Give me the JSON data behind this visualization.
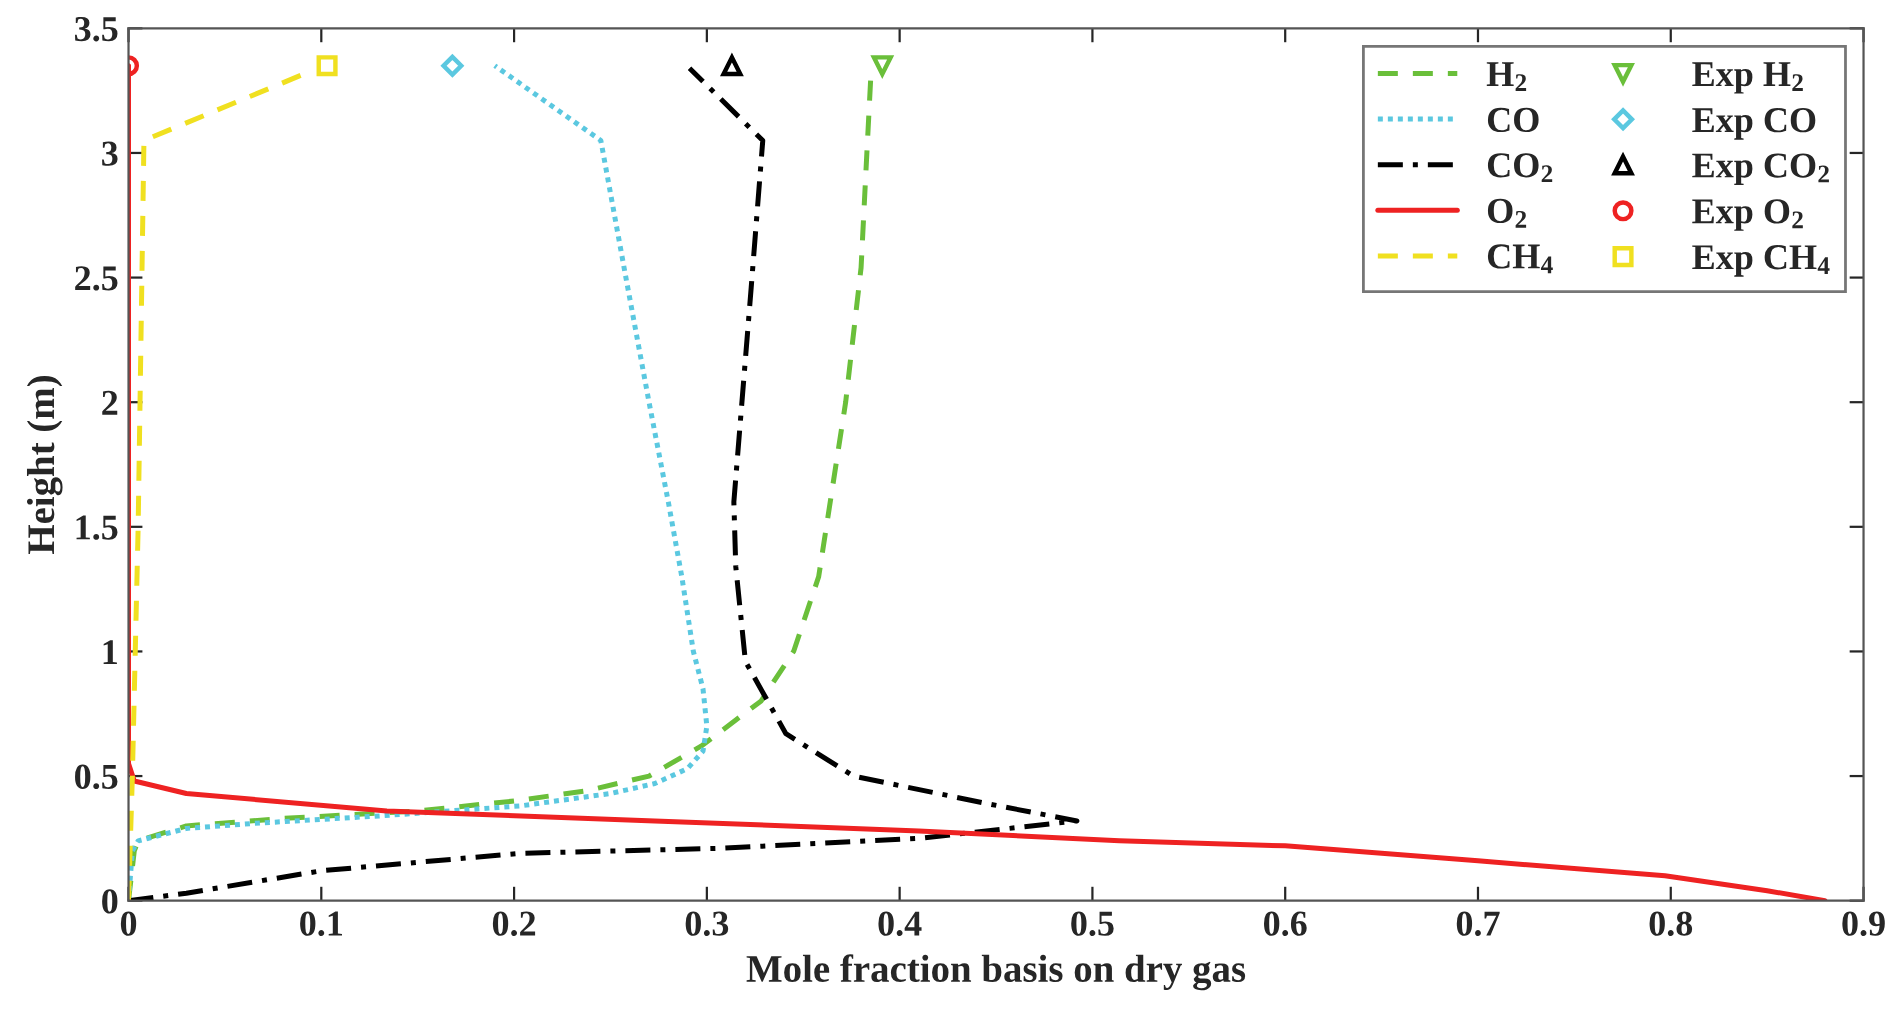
{
  "chart_data": {
    "type": "line",
    "xlabel": "Mole fraction basis on dry gas",
    "ylabel": "Height (m)",
    "xlim": [
      0,
      0.9
    ],
    "ylim": [
      0,
      3.5
    ],
    "xticks": [
      0,
      0.1,
      0.2,
      0.3,
      0.4,
      0.5,
      0.6,
      0.7,
      0.8,
      0.9
    ],
    "yticks": [
      0,
      0.5,
      1,
      1.5,
      2,
      2.5,
      3,
      3.5
    ],
    "grid": false,
    "legend": "top right",
    "series": [
      {
        "name": "H$_{2}$",
        "color": "#6abf3a",
        "line_style": "dashed",
        "x": [
          0,
          0.003,
          0.005,
          0.03,
          0.08,
          0.15,
          0.2,
          0.237,
          0.27,
          0.297,
          0.328,
          0.345,
          0.358,
          0.364,
          0.372,
          0.38,
          0.383,
          0.385
        ],
        "values": [
          0,
          0.2,
          0.24,
          0.3,
          0.33,
          0.36,
          0.4,
          0.44,
          0.5,
          0.62,
          0.8,
          1.0,
          1.3,
          1.6,
          2.0,
          2.54,
          3.0,
          3.3
        ]
      },
      {
        "name": "CO",
        "color": "#5bc8e0",
        "line_style": "dotted",
        "x": [
          0,
          0.002,
          0.005,
          0.03,
          0.065,
          0.13,
          0.203,
          0.25,
          0.273,
          0.29,
          0.298,
          0.3,
          0.298,
          0.293,
          0.287,
          0.28,
          0.27,
          0.258,
          0.245,
          0.19
        ],
        "values": [
          0,
          0.2,
          0.24,
          0.29,
          0.31,
          0.34,
          0.38,
          0.43,
          0.47,
          0.53,
          0.6,
          0.7,
          0.85,
          1.0,
          1.3,
          1.6,
          2.0,
          2.5,
          3.05,
          3.35
        ]
      },
      {
        "name": "CO$_{2}$",
        "color": "#000000",
        "line_style": "dashdot",
        "x": [
          0,
          0.03,
          0.1,
          0.203,
          0.307,
          0.41,
          0.492,
          0.445,
          0.376,
          0.341,
          0.32,
          0.315,
          0.314,
          0.323,
          0.329,
          0.291
        ],
        "values": [
          0,
          0.03,
          0.12,
          0.19,
          0.21,
          0.25,
          0.32,
          0.39,
          0.5,
          0.67,
          0.96,
          1.34,
          1.6,
          2.46,
          3.05,
          3.34
        ]
      },
      {
        "name": "O$_{2}$",
        "color": "#ee2222",
        "line_style": "solid",
        "x": [
          0,
          0,
          0.003,
          0.03,
          0.134,
          0.273,
          0.41,
          0.514,
          0.6,
          0.7,
          0.797,
          0.85,
          0.88
        ],
        "values": [
          3.35,
          0.55,
          0.48,
          0.43,
          0.36,
          0.32,
          0.28,
          0.24,
          0.22,
          0.16,
          0.1,
          0.04,
          0
        ]
      },
      {
        "name": "CH$_{4}$",
        "color": "#f0e020",
        "line_style": "dashed",
        "x": [
          0,
          0.002,
          0.005,
          0.008,
          0.092
        ],
        "values": [
          0,
          0.5,
          1.5,
          3.05,
          3.32
        ]
      },
      {
        "type": "scatter",
        "name": "Exp H$_{2}$",
        "color": "#6abf3a",
        "marker": "triangle_down",
        "x": [
          0.391
        ],
        "values": [
          3.35
        ]
      },
      {
        "type": "scatter",
        "name": "Exp CO",
        "color": "#5bc8e0",
        "marker": "diamond",
        "x": [
          0.168
        ],
        "values": [
          3.35
        ]
      },
      {
        "type": "scatter",
        "name": "Exp CO$_{2}$",
        "color": "#000000",
        "marker": "triangle",
        "x": [
          0.313
        ],
        "values": [
          3.35
        ]
      },
      {
        "type": "scatter",
        "name": "Exp O$_{2}$",
        "color": "#ee2222",
        "marker": "circle",
        "x": [
          0
        ],
        "values": [
          3.35
        ]
      },
      {
        "type": "scatter",
        "name": "Exp CH$_{4}$",
        "color": "#f0e020",
        "marker": "square",
        "x": [
          0.103
        ],
        "values": [
          3.35
        ]
      }
    ]
  }
}
